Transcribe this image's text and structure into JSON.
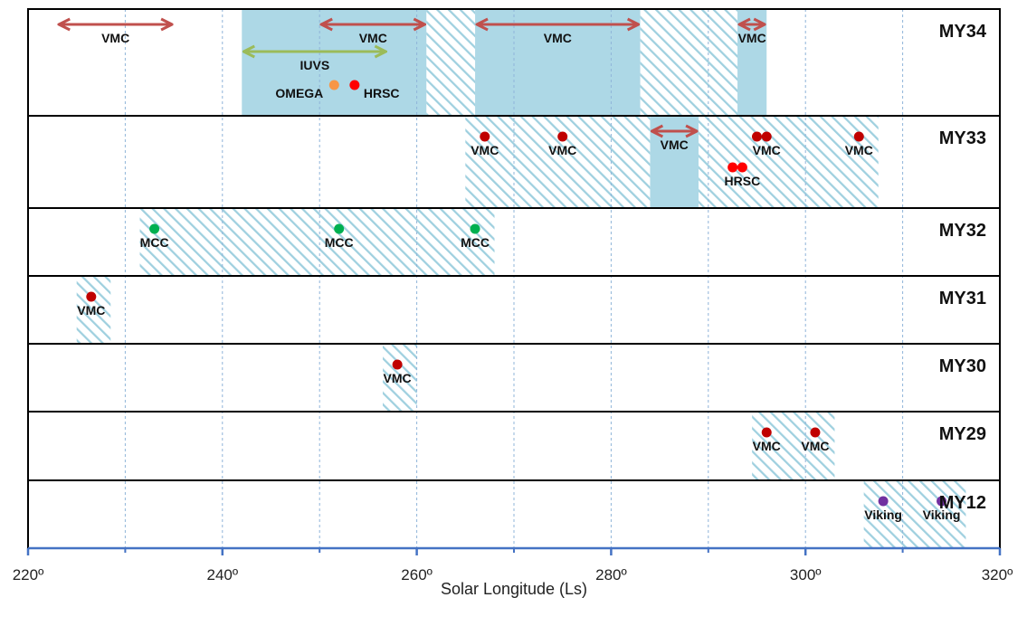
{
  "chart_data": {
    "type": "timeline",
    "xlabel": "Solar Longitude (Ls)",
    "xlim": [
      220,
      320
    ],
    "major_ticks": [
      220,
      240,
      260,
      280,
      300,
      320
    ],
    "minor_ticks": [
      230,
      250,
      270,
      290,
      310
    ],
    "tick_labels": [
      "220º",
      "240º",
      "260º",
      "280º",
      "300º",
      "320º"
    ],
    "colors": {
      "solid_band": "#add8e6",
      "hatch": "#9fd0df",
      "arrow_vmc": "#c0504d",
      "arrow_iuvs": "#9bbb59",
      "dot_vmc": "#c00000",
      "dot_hrsc": "#ff0000",
      "dot_omega": "#f79646",
      "dot_mcc": "#00b050",
      "dot_viking": "#7030a0"
    },
    "rows": [
      {
        "name": "MY34",
        "solid": [
          [
            242,
            261
          ],
          [
            266,
            283
          ],
          [
            293,
            296
          ]
        ],
        "hatched": [
          [
            261,
            266
          ],
          [
            283,
            293
          ]
        ],
        "arrows": [
          {
            "from": 223,
            "to": 235,
            "label": "VMC",
            "instrument": "VMC",
            "level": 0
          },
          {
            "from": 250,
            "to": 261,
            "label": "VMC",
            "instrument": "VMC",
            "level": 0
          },
          {
            "from": 242,
            "to": 257,
            "label": "IUVS",
            "instrument": "IUVS",
            "level": 1
          },
          {
            "from": 266,
            "to": 283,
            "label": "VMC",
            "instrument": "VMC",
            "level": 0
          },
          {
            "from": 293,
            "to": 296,
            "label": "VMC",
            "instrument": "VMC",
            "level": 0
          }
        ],
        "points": [
          {
            "x": 251.5,
            "label": "OMEGA",
            "instrument": "OMEGA",
            "level": 2,
            "label_side": "left"
          },
          {
            "x": 253.6,
            "label": "HRSC",
            "instrument": "HRSC",
            "level": 2,
            "label_side": "right"
          }
        ]
      },
      {
        "name": "MY33",
        "solid": [
          [
            284,
            289
          ]
        ],
        "hatched": [
          [
            265,
            284
          ],
          [
            289,
            307.5
          ]
        ],
        "arrows": [
          {
            "from": 284,
            "to": 289,
            "label": "VMC",
            "instrument": "VMC",
            "level": 0
          }
        ],
        "points": [
          {
            "x": 267,
            "label": "VMC",
            "instrument": "VMC",
            "level": 0
          },
          {
            "x": 275,
            "label": "VMC",
            "instrument": "VMC",
            "level": 0
          },
          {
            "x": 295,
            "label": "",
            "instrument": "VMC",
            "level": 0
          },
          {
            "x": 296,
            "label": "VMC",
            "instrument": "VMC",
            "level": 0
          },
          {
            "x": 305.5,
            "label": "VMC",
            "instrument": "VMC",
            "level": 0
          },
          {
            "x": 292.5,
            "label": "",
            "instrument": "HRSC",
            "level": 1
          },
          {
            "x": 293.5,
            "label": "HRSC",
            "instrument": "HRSC",
            "level": 1
          }
        ]
      },
      {
        "name": "MY32",
        "solid": [],
        "hatched": [
          [
            231.5,
            268
          ]
        ],
        "arrows": [],
        "points": [
          {
            "x": 233,
            "label": "MCC",
            "instrument": "MCC",
            "level": 0
          },
          {
            "x": 252,
            "label": "MCC",
            "instrument": "MCC",
            "level": 0
          },
          {
            "x": 266,
            "label": "MCC",
            "instrument": "MCC",
            "level": 0
          }
        ]
      },
      {
        "name": "MY31",
        "solid": [],
        "hatched": [
          [
            225,
            228.5
          ]
        ],
        "arrows": [],
        "points": [
          {
            "x": 226.5,
            "label": "VMC",
            "instrument": "VMC",
            "level": 0
          }
        ]
      },
      {
        "name": "MY30",
        "solid": [],
        "hatched": [
          [
            256.5,
            260
          ]
        ],
        "arrows": [],
        "points": [
          {
            "x": 258,
            "label": "VMC",
            "instrument": "VMC",
            "level": 0
          }
        ]
      },
      {
        "name": "MY29",
        "solid": [],
        "hatched": [
          [
            294.5,
            303
          ]
        ],
        "arrows": [],
        "points": [
          {
            "x": 296,
            "label": "VMC",
            "instrument": "VMC",
            "level": 0
          },
          {
            "x": 301,
            "label": "VMC",
            "instrument": "VMC",
            "level": 0
          }
        ]
      },
      {
        "name": "MY12",
        "solid": [],
        "hatched": [
          [
            306,
            316.5
          ]
        ],
        "arrows": [],
        "points": [
          {
            "x": 308,
            "label": "Viking",
            "instrument": "Viking",
            "level": 0
          },
          {
            "x": 314,
            "label": "Viking",
            "instrument": "Viking",
            "level": 0
          }
        ]
      }
    ]
  }
}
